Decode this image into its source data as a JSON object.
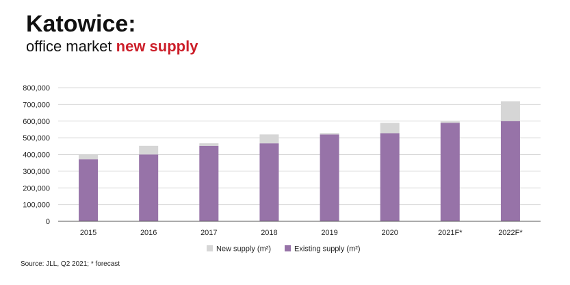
{
  "header": {
    "title": "Katowice:",
    "subtitle_plain": "office market ",
    "subtitle_accent": "new supply"
  },
  "footer": {
    "source": "Source: JLL, Q2 2021;  * forecast"
  },
  "colors": {
    "existing": "#9773a8",
    "new": "#d6d6d6",
    "accent": "#cc1f2a",
    "grid": "#d9d9d9",
    "axis": "#555555"
  },
  "chart_data": {
    "type": "bar",
    "stacked": true,
    "categories": [
      "2015",
      "2016",
      "2017",
      "2018",
      "2019",
      "2020",
      "2021F*",
      "2022F*"
    ],
    "series": [
      {
        "name": "Existing supply (m²)",
        "values": [
          372000,
          400000,
          452000,
          467000,
          520000,
          528000,
          590000,
          600000
        ]
      },
      {
        "name": "New supply (m²)",
        "values": [
          28000,
          52000,
          15000,
          53000,
          8000,
          62000,
          8000,
          118000
        ]
      }
    ],
    "ylim": [
      0,
      800000
    ],
    "yticks": [
      0,
      100000,
      200000,
      300000,
      400000,
      500000,
      600000,
      700000,
      800000
    ],
    "ytick_labels": [
      "0",
      "100,000",
      "200,000",
      "300,000",
      "400,000",
      "500,000",
      "600,000",
      "700,000",
      "800,000"
    ],
    "legend_order": [
      "New supply (m²)",
      "Existing supply (m²)"
    ],
    "legend_position": "bottom",
    "grid": true,
    "xlabel": "",
    "ylabel": ""
  }
}
